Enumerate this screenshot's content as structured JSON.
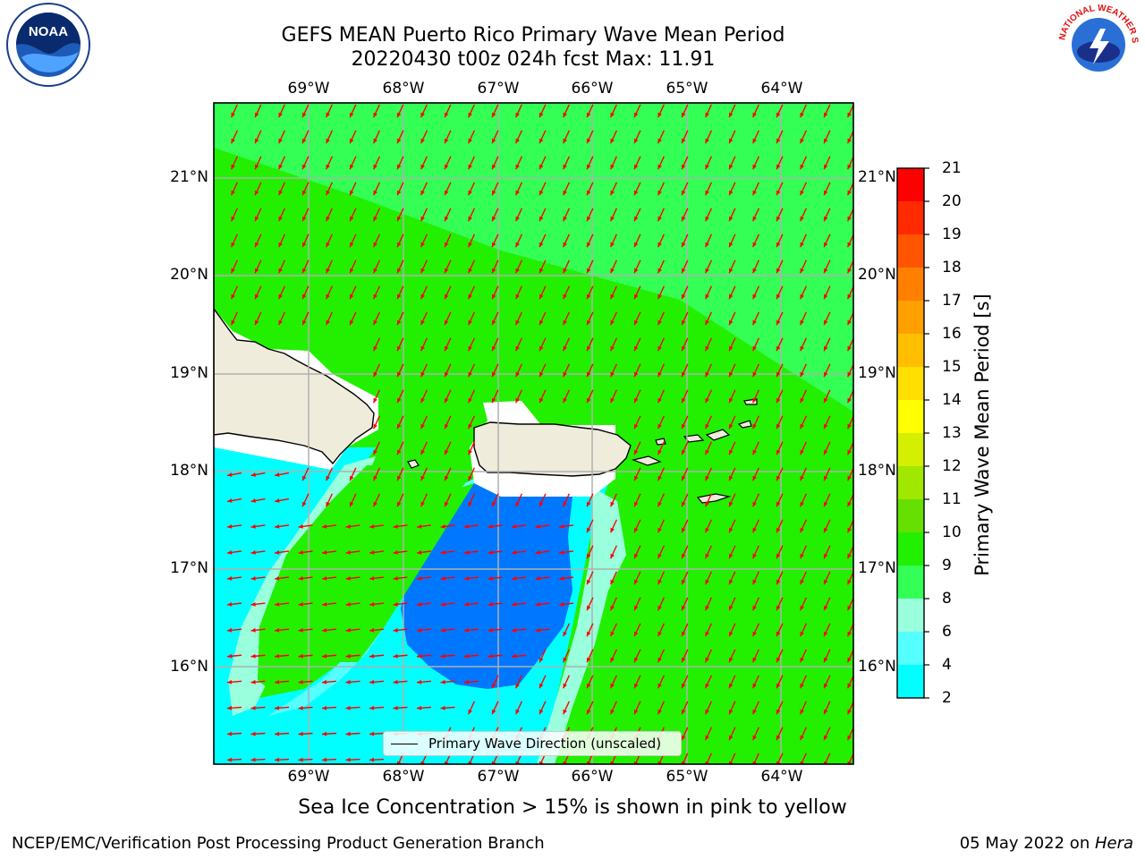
{
  "title": {
    "line1": "GEFS MEAN Puerto Rico Primary Wave Mean Period",
    "line2": "20220430 t00z 024h fcst   Max: 11.91"
  },
  "map": {
    "lon_ticks": [
      "69°W",
      "68°W",
      "67°W",
      "66°W",
      "65°W",
      "64°W"
    ],
    "lat_ticks": [
      "21°N",
      "20°N",
      "19°N",
      "18°N",
      "17°N",
      "16°N"
    ],
    "legend_label": "Primary Wave Direction (unscaled)",
    "arrow_color": "#ff0000",
    "land_color": "#efecdc"
  },
  "colorbar": {
    "title": "Primary Wave Mean Period [s]",
    "tick_labels": [
      "21",
      "20",
      "19",
      "18",
      "17",
      "16",
      "15",
      "14",
      "13",
      "12",
      "11",
      "10",
      "9",
      "8",
      "6",
      "4",
      "2"
    ],
    "colors": [
      "#ff0000",
      "#ff2a00",
      "#ff5500",
      "#ff7f00",
      "#ff9f00",
      "#ffbf00",
      "#ffdf00",
      "#ffff00",
      "#d4f000",
      "#a0e800",
      "#66e000",
      "#22f000",
      "#33ff55",
      "#99ffdd",
      "#55ffff",
      "#00ffff",
      "#0077ff",
      "#0000ff"
    ]
  },
  "footnote": "Sea Ice Concentration > 15% is shown in pink to yellow",
  "credits": {
    "left": "NCEP/EMC/Verification Post Processing Product Generation Branch",
    "right_prefix": "05 May 2022 on ",
    "right_machine": "Hera"
  },
  "logos": {
    "left_text": "NOAA",
    "right_text": "NATIONAL WEATHER SERVICE"
  }
}
